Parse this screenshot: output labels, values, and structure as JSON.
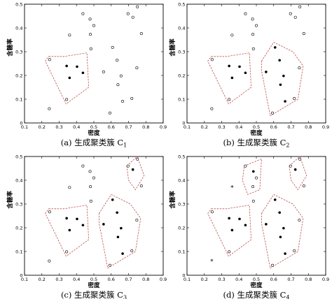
{
  "chart_data": [
    {
      "type": "scatter",
      "caption": "(a) 生成聚类簇 C",
      "caption_sub": "1",
      "xlabel": "密度",
      "ylabel": "含糖率",
      "xlim": [
        0.1,
        0.9
      ],
      "ylim": [
        0,
        0.5
      ],
      "xticks": [
        0.1,
        0.2,
        0.3,
        0.4,
        0.5,
        0.6,
        0.7,
        0.8,
        0.9
      ],
      "yticks": [
        0,
        0.1,
        0.2,
        0.3,
        0.4,
        0.5
      ],
      "grid": false,
      "filled": [
        [
          0.343,
          0.24
        ],
        [
          0.36,
          0.19
        ],
        [
          0.403,
          0.237
        ],
        [
          0.437,
          0.211
        ]
      ],
      "open": [
        [
          0.243,
          0.06
        ],
        [
          0.245,
          0.267
        ],
        [
          0.343,
          0.099
        ],
        [
          0.36,
          0.37
        ],
        [
          0.437,
          0.46
        ],
        [
          0.48,
          0.373
        ],
        [
          0.5,
          0.41
        ],
        [
          0.556,
          0.215
        ],
        [
          0.593,
          0.042
        ],
        [
          0.608,
          0.318
        ],
        [
          0.634,
          0.264
        ],
        [
          0.639,
          0.161
        ],
        [
          0.657,
          0.198
        ],
        [
          0.666,
          0.091
        ],
        [
          0.697,
          0.46
        ],
        [
          0.719,
          0.103
        ],
        [
          0.725,
          0.445
        ],
        [
          0.748,
          0.232
        ],
        [
          0.751,
          0.489
        ],
        [
          0.774,
          0.376
        ],
        [
          0.483,
          0.312
        ],
        [
          0.478,
          0.437
        ]
      ],
      "stars": [],
      "hulls": [
        [
          [
            0.24,
            0.28
          ],
          [
            0.33,
            0.28
          ],
          [
            0.46,
            0.295
          ],
          [
            0.47,
            0.15
          ],
          [
            0.34,
            0.08
          ],
          [
            0.22,
            0.26
          ]
        ]
      ]
    },
    {
      "type": "scatter",
      "caption": "(b) 生成聚类簇 C",
      "caption_sub": "2",
      "xlabel": "密度",
      "ylabel": "含糖率",
      "xlim": [
        0.1,
        0.9
      ],
      "ylim": [
        0,
        0.5
      ],
      "xticks": [
        0.1,
        0.2,
        0.3,
        0.4,
        0.5,
        0.6,
        0.7,
        0.8,
        0.9
      ],
      "yticks": [
        0,
        0.1,
        0.2,
        0.3,
        0.4,
        0.5
      ],
      "grid": false,
      "filled": [
        [
          0.343,
          0.24
        ],
        [
          0.36,
          0.19
        ],
        [
          0.403,
          0.237
        ],
        [
          0.437,
          0.211
        ],
        [
          0.556,
          0.215
        ],
        [
          0.608,
          0.318
        ],
        [
          0.634,
          0.264
        ],
        [
          0.639,
          0.161
        ],
        [
          0.657,
          0.198
        ],
        [
          0.666,
          0.091
        ]
      ],
      "open": [
        [
          0.243,
          0.06
        ],
        [
          0.245,
          0.267
        ],
        [
          0.343,
          0.099
        ],
        [
          0.36,
          0.37
        ],
        [
          0.437,
          0.46
        ],
        [
          0.48,
          0.373
        ],
        [
          0.5,
          0.41
        ],
        [
          0.593,
          0.042
        ],
        [
          0.697,
          0.46
        ],
        [
          0.719,
          0.103
        ],
        [
          0.725,
          0.445
        ],
        [
          0.748,
          0.232
        ],
        [
          0.751,
          0.489
        ],
        [
          0.774,
          0.376
        ],
        [
          0.483,
          0.312
        ],
        [
          0.478,
          0.437
        ]
      ],
      "stars": [],
      "hulls": [
        [
          [
            0.24,
            0.28
          ],
          [
            0.33,
            0.28
          ],
          [
            0.46,
            0.295
          ],
          [
            0.47,
            0.15
          ],
          [
            0.34,
            0.08
          ],
          [
            0.22,
            0.26
          ]
        ],
        [
          [
            0.53,
            0.26
          ],
          [
            0.6,
            0.34
          ],
          [
            0.71,
            0.3
          ],
          [
            0.77,
            0.24
          ],
          [
            0.74,
            0.1
          ],
          [
            0.58,
            0.03
          ],
          [
            0.53,
            0.22
          ]
        ]
      ]
    },
    {
      "type": "scatter",
      "caption": "(c) 生成聚类簇 C",
      "caption_sub": "3",
      "xlabel": "密度",
      "ylabel": "含糖率",
      "xlim": [
        0.1,
        0.9
      ],
      "ylim": [
        0,
        0.5
      ],
      "xticks": [
        0.1,
        0.2,
        0.3,
        0.4,
        0.5,
        0.6,
        0.7,
        0.8,
        0.9
      ],
      "yticks": [
        0,
        0.1,
        0.2,
        0.3,
        0.4,
        0.5
      ],
      "grid": false,
      "filled": [
        [
          0.343,
          0.24
        ],
        [
          0.36,
          0.19
        ],
        [
          0.403,
          0.237
        ],
        [
          0.437,
          0.211
        ],
        [
          0.556,
          0.215
        ],
        [
          0.608,
          0.318
        ],
        [
          0.634,
          0.264
        ],
        [
          0.639,
          0.161
        ],
        [
          0.657,
          0.198
        ],
        [
          0.666,
          0.091
        ],
        [
          0.725,
          0.445
        ]
      ],
      "open": [
        [
          0.243,
          0.06
        ],
        [
          0.245,
          0.267
        ],
        [
          0.343,
          0.099
        ],
        [
          0.36,
          0.37
        ],
        [
          0.437,
          0.46
        ],
        [
          0.48,
          0.373
        ],
        [
          0.5,
          0.41
        ],
        [
          0.593,
          0.042
        ],
        [
          0.697,
          0.46
        ],
        [
          0.719,
          0.103
        ],
        [
          0.748,
          0.232
        ],
        [
          0.751,
          0.489
        ],
        [
          0.774,
          0.376
        ],
        [
          0.483,
          0.312
        ],
        [
          0.478,
          0.437
        ]
      ],
      "stars": [],
      "hulls": [
        [
          [
            0.24,
            0.28
          ],
          [
            0.33,
            0.28
          ],
          [
            0.46,
            0.295
          ],
          [
            0.47,
            0.15
          ],
          [
            0.34,
            0.08
          ],
          [
            0.22,
            0.26
          ]
        ],
        [
          [
            0.53,
            0.26
          ],
          [
            0.6,
            0.34
          ],
          [
            0.71,
            0.3
          ],
          [
            0.77,
            0.24
          ],
          [
            0.74,
            0.1
          ],
          [
            0.58,
            0.03
          ],
          [
            0.53,
            0.22
          ]
        ],
        [
          [
            0.69,
            0.46
          ],
          [
            0.75,
            0.5
          ],
          [
            0.79,
            0.42
          ],
          [
            0.74,
            0.36
          ],
          [
            0.7,
            0.4
          ]
        ]
      ]
    },
    {
      "type": "scatter",
      "caption": "(d) 生成聚类簇 C",
      "caption_sub": "4",
      "xlabel": "密度",
      "ylabel": "含糖率",
      "xlim": [
        0.1,
        0.9
      ],
      "ylim": [
        0,
        0.5
      ],
      "xticks": [
        0.1,
        0.2,
        0.3,
        0.4,
        0.5,
        0.6,
        0.7,
        0.8,
        0.9
      ],
      "yticks": [
        0,
        0.1,
        0.2,
        0.3,
        0.4,
        0.5
      ],
      "grid": false,
      "filled": [
        [
          0.343,
          0.24
        ],
        [
          0.36,
          0.19
        ],
        [
          0.403,
          0.237
        ],
        [
          0.437,
          0.211
        ],
        [
          0.556,
          0.215
        ],
        [
          0.608,
          0.318
        ],
        [
          0.634,
          0.264
        ],
        [
          0.639,
          0.161
        ],
        [
          0.657,
          0.198
        ],
        [
          0.666,
          0.091
        ],
        [
          0.725,
          0.445
        ],
        [
          0.483,
          0.437
        ]
      ],
      "open": [
        [
          0.245,
          0.267
        ],
        [
          0.343,
          0.099
        ],
        [
          0.437,
          0.46
        ],
        [
          0.48,
          0.373
        ],
        [
          0.5,
          0.41
        ],
        [
          0.593,
          0.042
        ],
        [
          0.697,
          0.46
        ],
        [
          0.719,
          0.103
        ],
        [
          0.748,
          0.232
        ],
        [
          0.751,
          0.489
        ],
        [
          0.774,
          0.376
        ],
        [
          0.483,
          0.312
        ]
      ],
      "stars": [
        [
          0.243,
          0.06
        ],
        [
          0.36,
          0.37
        ]
      ],
      "hulls": [
        [
          [
            0.24,
            0.28
          ],
          [
            0.33,
            0.28
          ],
          [
            0.46,
            0.295
          ],
          [
            0.47,
            0.15
          ],
          [
            0.34,
            0.08
          ],
          [
            0.22,
            0.26
          ]
        ],
        [
          [
            0.53,
            0.26
          ],
          [
            0.6,
            0.34
          ],
          [
            0.71,
            0.3
          ],
          [
            0.77,
            0.24
          ],
          [
            0.74,
            0.1
          ],
          [
            0.58,
            0.03
          ],
          [
            0.53,
            0.22
          ]
        ],
        [
          [
            0.69,
            0.46
          ],
          [
            0.75,
            0.5
          ],
          [
            0.79,
            0.42
          ],
          [
            0.74,
            0.36
          ],
          [
            0.7,
            0.4
          ]
        ],
        [
          [
            0.43,
            0.46
          ],
          [
            0.53,
            0.49
          ],
          [
            0.52,
            0.36
          ],
          [
            0.45,
            0.34
          ],
          [
            0.42,
            0.4
          ]
        ]
      ]
    }
  ]
}
